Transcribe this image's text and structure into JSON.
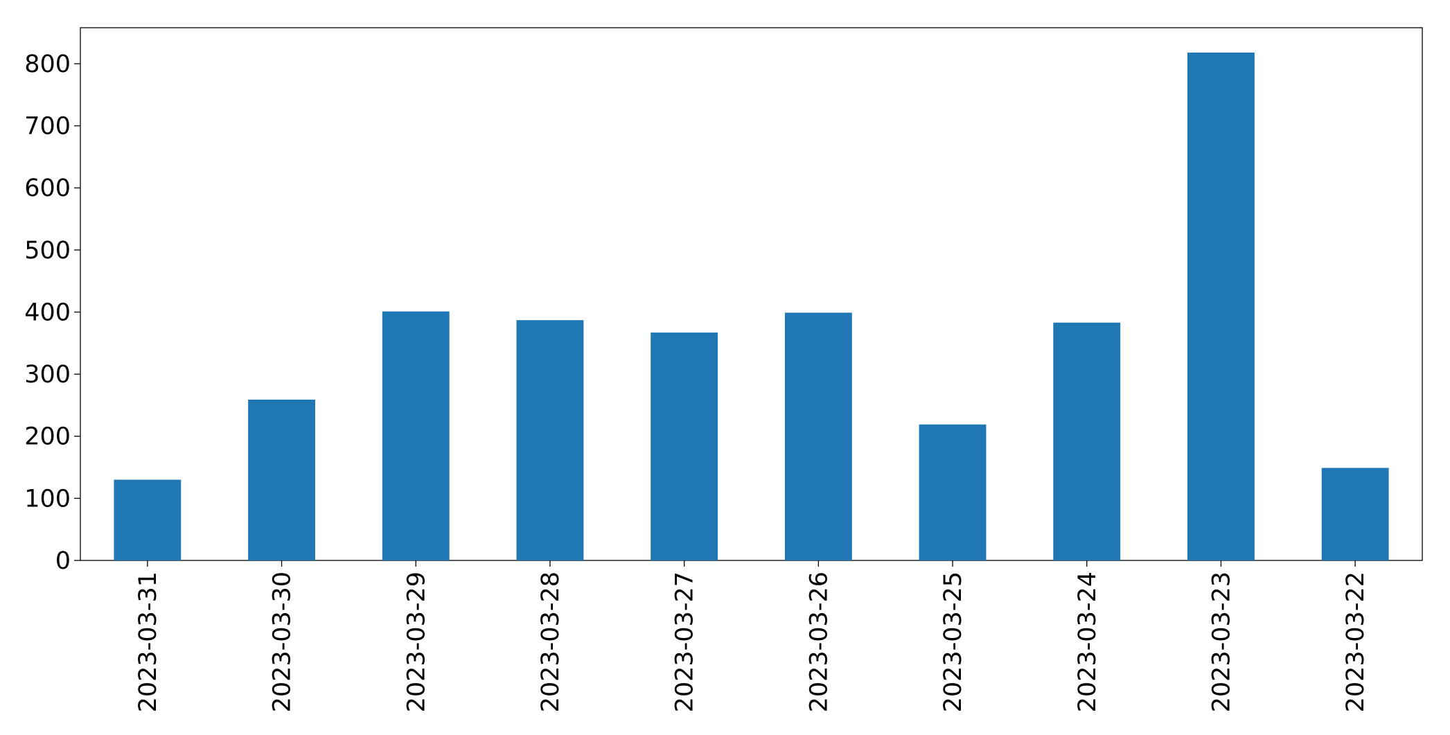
{
  "chart_data": {
    "type": "bar",
    "categories": [
      "2023-03-31",
      "2023-03-30",
      "2023-03-29",
      "2023-03-28",
      "2023-03-27",
      "2023-03-26",
      "2023-03-25",
      "2023-03-24",
      "2023-03-23",
      "2023-03-22"
    ],
    "values": [
      130,
      259,
      401,
      387,
      367,
      399,
      219,
      383,
      818,
      149
    ],
    "color": "#1f77b4",
    "ylim": [
      0,
      858
    ],
    "yticks": [
      0,
      100,
      200,
      300,
      400,
      500,
      600,
      700,
      800
    ],
    "grid": false
  }
}
